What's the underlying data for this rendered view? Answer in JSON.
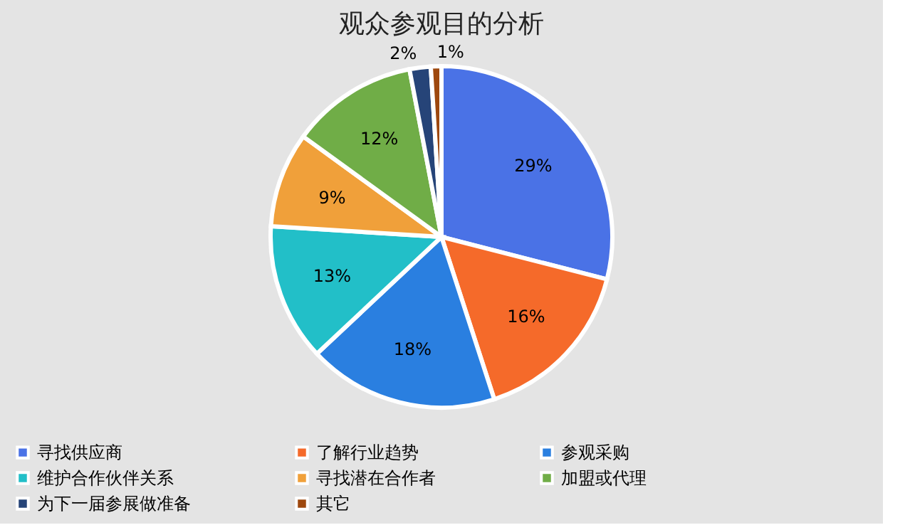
{
  "chart_data": {
    "type": "pie",
    "title": "观众参观目的分析",
    "categories": [
      "寻找供应商",
      "了解行业趋势",
      "参观采购",
      "维护合作伙伴关系",
      "寻找潜在合作者",
      "加盟或代理",
      "为下一届参展做准备",
      "其它"
    ],
    "values": [
      29,
      16,
      18,
      13,
      9,
      12,
      2,
      1
    ],
    "colors": [
      "#4a72e6",
      "#f56a2a",
      "#2a7fe0",
      "#22bfc8",
      "#f0a03a",
      "#70ad47",
      "#264478",
      "#9e480e"
    ],
    "value_labels": [
      "29%",
      "16%",
      "18%",
      "13%",
      "9%",
      "12%",
      "2%",
      "1%"
    ],
    "legend": "bottom"
  }
}
